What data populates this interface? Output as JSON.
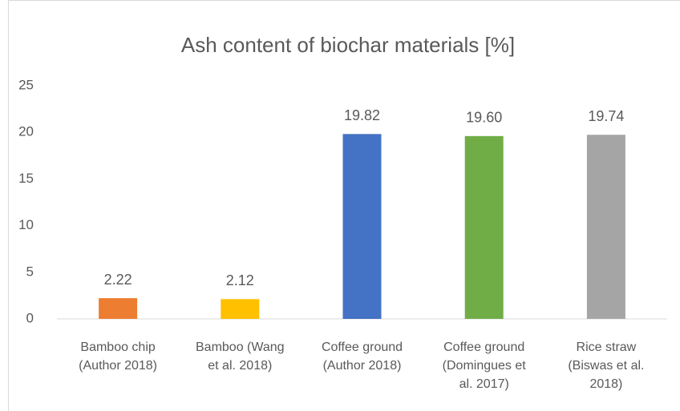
{
  "chart_data": {
    "type": "bar",
    "title": "Ash content of biochar materials [%]",
    "categories": [
      [
        "Bamboo chip",
        "(Author 2018)"
      ],
      [
        "Bamboo (Wang",
        "et al. 2018)"
      ],
      [
        "Coffee ground",
        "(Author 2018)"
      ],
      [
        "Coffee ground",
        "(Domingues et",
        "al. 2017)"
      ],
      [
        "Rice straw",
        "(Biswas et al.",
        "2018)"
      ]
    ],
    "values": [
      2.22,
      2.12,
      19.82,
      19.6,
      19.74
    ],
    "value_labels": [
      "2.22",
      "2.12",
      "19.82",
      "19.60",
      "19.74"
    ],
    "colors": [
      "#ed7d31",
      "#ffc000",
      "#4472c4",
      "#70ad47",
      "#a5a5a5"
    ],
    "ylim": [
      0,
      25
    ],
    "yticks": [
      0,
      5,
      10,
      15,
      20,
      25
    ],
    "grid": false
  }
}
